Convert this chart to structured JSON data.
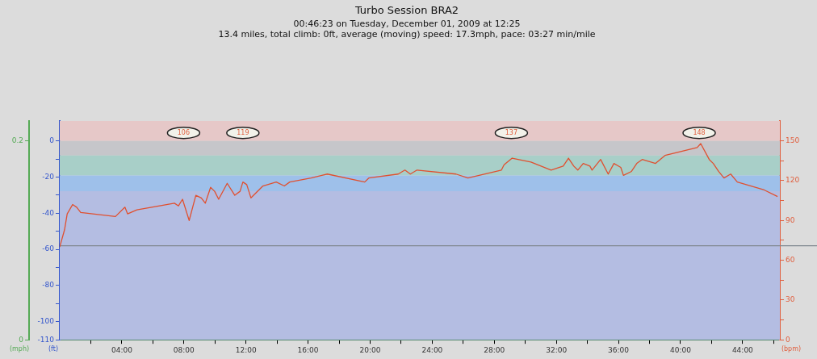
{
  "chart_data": {
    "type": "line",
    "title": "Turbo Session BRA2",
    "subtitle": "00:46:23 on Tuesday, December 01, 2009 at 12:25\n13.4 miles, total climb: 0ft, average (moving) speed: 17.3mph, pace: 03:27 min/mile",
    "ylabel": "(ft)",
    "y2label": "(bpm)",
    "y3label": "(mph)",
    "x": [
      0,
      0.31,
      0.48,
      0.83,
      1.09,
      1.35,
      3.59,
      4.2,
      4.37,
      4.97,
      7.39,
      7.65,
      7.91,
      8.34,
      8.77,
      9.12,
      9.38,
      9.72,
      9.98,
      10.24,
      10.79,
      11.28,
      11.62,
      11.8,
      12.05,
      12.32,
      13.09,
      13.95,
      14.47,
      14.82,
      16.2,
      16.89,
      17.24,
      19.65,
      19.91,
      21.81,
      22.24,
      22.59,
      23.02,
      25.53,
      26.3,
      28.46,
      28.63,
      29.15,
      30.36,
      31.66,
      32.44,
      32.78,
      33.12,
      33.38,
      33.73,
      34.16,
      34.3,
      34.85,
      35.34,
      35.71,
      36.15,
      36.32,
      36.84,
      37.18,
      37.53,
      38.39,
      39.0,
      41.07,
      41.3,
      41.85,
      42.11,
      42.45,
      42.8,
      43.23,
      43.66,
      45.39,
      46.25
    ],
    "series": [
      {
        "axis": "y2",
        "color": "#e05030",
        "values": [
          70,
          83,
          95,
          102,
          100,
          96,
          93,
          100,
          95,
          98,
          103,
          101,
          106,
          90,
          109,
          107,
          103,
          115,
          112,
          106,
          118,
          109,
          112,
          119,
          117,
          107,
          116,
          119,
          116,
          119,
          122,
          124,
          125,
          119,
          122,
          125,
          128,
          125,
          128,
          125,
          122,
          128,
          132,
          137,
          134,
          128,
          131,
          137,
          131,
          128,
          133,
          131,
          128,
          136,
          125,
          133,
          130,
          124,
          127,
          133,
          136,
          133,
          139,
          145,
          148,
          136,
          133,
          127,
          122,
          125,
          119,
          113,
          108
        ]
      }
    ],
    "xlim": [
      0,
      46.4
    ],
    "xticks": [
      {
        "value": 2,
        "label": null
      },
      {
        "value": 4,
        "label": "04:00"
      },
      {
        "value": 6,
        "label": null
      },
      {
        "value": 8,
        "label": "08:00"
      },
      {
        "value": 10,
        "label": null
      },
      {
        "value": 12,
        "label": "12:00"
      },
      {
        "value": 14,
        "label": null
      },
      {
        "value": 16,
        "label": "16:00"
      },
      {
        "value": 18,
        "label": null
      },
      {
        "value": 20,
        "label": "20:00"
      },
      {
        "value": 22,
        "label": null
      },
      {
        "value": 24,
        "label": "24:00"
      },
      {
        "value": 26,
        "label": null
      },
      {
        "value": 28,
        "label": "28:00"
      },
      {
        "value": 30,
        "label": null
      },
      {
        "value": 32,
        "label": "32:00"
      },
      {
        "value": 34,
        "label": null
      },
      {
        "value": 36,
        "label": "36:00"
      },
      {
        "value": 38,
        "label": null
      },
      {
        "value": 40,
        "label": "40:00"
      },
      {
        "value": 42,
        "label": null
      },
      {
        "value": 44,
        "label": "44:00"
      },
      {
        "value": 46,
        "label": null
      }
    ],
    "ylim": [
      -110,
      11
    ],
    "yticks": [
      0,
      {
        "value": -10,
        "label": null
      },
      -20,
      {
        "value": -30,
        "label": null
      },
      -40,
      {
        "value": -50,
        "label": null
      },
      -60,
      {
        "value": -70,
        "label": null
      },
      -80,
      {
        "value": -90,
        "label": null
      },
      -100,
      -110
    ],
    "y2lim": [
      0,
      165
    ],
    "y2ticks": [
      0,
      {
        "value": 15,
        "label": null
      },
      30,
      {
        "value": 45,
        "label": null
      },
      60,
      {
        "value": 75,
        "label": null
      },
      90,
      {
        "value": 105,
        "label": null
      },
      120,
      {
        "value": 135,
        "label": null
      },
      150
    ],
    "y3lim": [
      0,
      0.22
    ],
    "y3ticks": [
      0,
      0.2
    ],
    "bands": [
      {
        "axis": "y2",
        "from": 150,
        "to": 165,
        "color": "#e6c8c8"
      },
      {
        "axis": "y2",
        "from": 139,
        "to": 150,
        "color": "#c6c6ca"
      },
      {
        "axis": "y2",
        "from": 124,
        "to": 139,
        "color": "#a8cfc8"
      },
      {
        "axis": "y2",
        "from": 112,
        "to": 124,
        "color": "#9ec0ea"
      },
      {
        "axis": "y2",
        "from": 0,
        "to": 112,
        "color": "#b4bde2"
      }
    ],
    "ref_lines": [
      {
        "axis": "y",
        "value": -58,
        "color": "#808890"
      }
    ],
    "annotations": [
      {
        "text": "106",
        "x": 7.98,
        "y": 0
      },
      {
        "text": "119",
        "x": 11.8,
        "y": 0
      },
      {
        "text": "137",
        "x": 29.1,
        "y": 0
      },
      {
        "text": "148",
        "x": 41.2,
        "y": 0
      }
    ],
    "grid": false,
    "legend": false,
    "marker": "none",
    "line_style": "solid"
  }
}
